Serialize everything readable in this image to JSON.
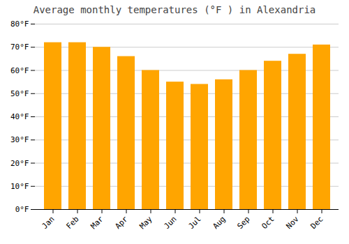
{
  "chart_data": {
    "type": "bar",
    "title": "Average monthly temperatures (°F ) in Alexandria",
    "categories": [
      "Jan",
      "Feb",
      "Mar",
      "Apr",
      "May",
      "Jun",
      "Jul",
      "Aug",
      "Sep",
      "Oct",
      "Nov",
      "Dec"
    ],
    "values": [
      72,
      72,
      70,
      66,
      60,
      55,
      54,
      56,
      60,
      64,
      67,
      71
    ],
    "color": "#FFA500",
    "ylim": [
      0,
      80
    ],
    "yticks": [
      {
        "value": 0,
        "label": "0°F"
      },
      {
        "value": 10,
        "label": "10°F"
      },
      {
        "value": 20,
        "label": "20°F"
      },
      {
        "value": 30,
        "label": "30°F"
      },
      {
        "value": 40,
        "label": "40°F"
      },
      {
        "value": 50,
        "label": "50°F"
      },
      {
        "value": 60,
        "label": "60°F"
      },
      {
        "value": 70,
        "label": "70°F"
      },
      {
        "value": 80,
        "label": "80°F"
      }
    ],
    "grid": true
  }
}
